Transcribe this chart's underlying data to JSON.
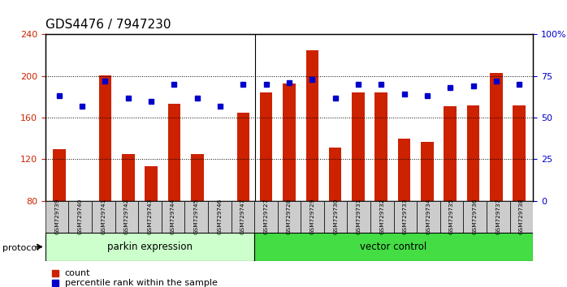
{
  "title": "GDS4476 / 7947230",
  "samples": [
    "GSM729739",
    "GSM729740",
    "GSM729741",
    "GSM729742",
    "GSM729743",
    "GSM729744",
    "GSM729745",
    "GSM729746",
    "GSM729747",
    "GSM729727",
    "GSM729728",
    "GSM729729",
    "GSM729730",
    "GSM729731",
    "GSM729732",
    "GSM729733",
    "GSM729734",
    "GSM729735",
    "GSM729736",
    "GSM729737",
    "GSM729738"
  ],
  "counts": [
    130,
    80,
    201,
    125,
    113,
    173,
    125,
    80,
    165,
    184,
    193,
    225,
    131,
    184,
    184,
    140,
    137,
    171,
    172,
    203,
    172
  ],
  "percentile_ranks": [
    63,
    57,
    72,
    62,
    60,
    70,
    62,
    57,
    70,
    70,
    71,
    73,
    62,
    70,
    70,
    64,
    63,
    68,
    69,
    72,
    70
  ],
  "parkin_group_count": 9,
  "vector_group_count": 12,
  "parkin_label": "parkin expression",
  "vector_label": "vector control",
  "protocol_label": "protocol",
  "ylim_left": [
    80,
    240
  ],
  "ylim_right": [
    0,
    100
  ],
  "yticks_left": [
    80,
    120,
    160,
    200,
    240
  ],
  "yticks_right": [
    0,
    25,
    50,
    75,
    100
  ],
  "bar_color": "#cc2200",
  "dot_color": "#0000cc",
  "parkin_bg": "#ccffcc",
  "vector_bg": "#44dd44",
  "grid_color": "#000000",
  "tick_bg": "#cccccc",
  "legend_count_label": "count",
  "legend_pct_label": "percentile rank within the sample",
  "title_fontsize": 11,
  "axis_fontsize": 8,
  "legend_fontsize": 8
}
